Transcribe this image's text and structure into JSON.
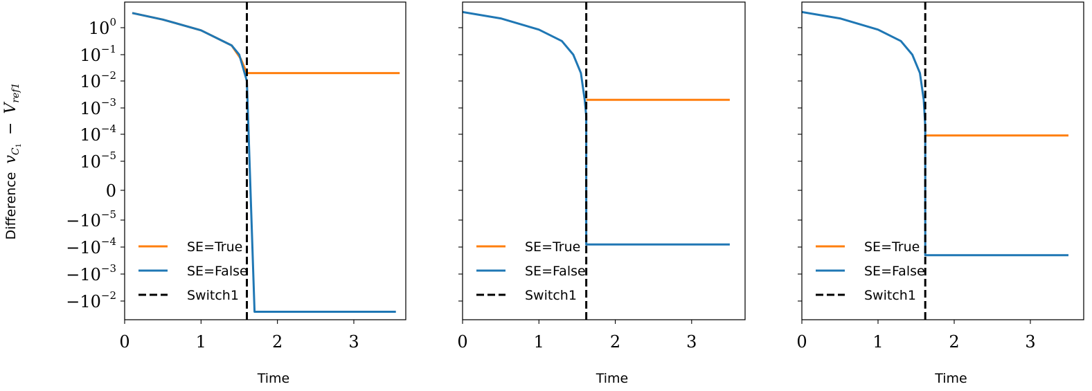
{
  "figure": {
    "ylabel_prefix": "Difference",
    "ylabel_math": "v",
    "ylabel_math_sub": "C",
    "ylabel_math_subsub": "1",
    "ylabel_minus": "−",
    "ylabel_math2": "V",
    "ylabel_math2_sub": "ref1"
  },
  "colors": {
    "se_true": "#ff7f0e",
    "se_false": "#1f77b4",
    "switch": "#000000"
  },
  "chart_data": [
    {
      "type": "line",
      "panel": 1,
      "xlabel": "Time",
      "ylabel": "Difference v_{C_1} − V_{ref1}",
      "xlim": [
        0,
        3.7
      ],
      "yscale": "symlog",
      "x_ticks": [
        "0",
        "1",
        "2",
        "3"
      ],
      "y_ticks": [
        {
          "base": "10",
          "exp": "0",
          "sign": ""
        },
        {
          "base": "10",
          "exp": "−1",
          "sign": ""
        },
        {
          "base": "10",
          "exp": "−2",
          "sign": ""
        },
        {
          "base": "10",
          "exp": "−3",
          "sign": ""
        },
        {
          "base": "10",
          "exp": "−4",
          "sign": ""
        },
        {
          "base": "10",
          "exp": "−5",
          "sign": ""
        },
        {
          "base": "0",
          "exp": "",
          "sign": ""
        },
        {
          "base": "10",
          "exp": "−5",
          "sign": "−"
        },
        {
          "base": "10",
          "exp": "−4",
          "sign": "−"
        },
        {
          "base": "10",
          "exp": "−3",
          "sign": "−"
        },
        {
          "base": "10",
          "exp": "−2",
          "sign": "−"
        }
      ],
      "switch_x": 1.6,
      "legend": [
        "SE=True",
        "SE=False",
        "Switch1"
      ],
      "legend_position": "lower left",
      "series": [
        {
          "name": "SE=True",
          "color": "#ff7f0e",
          "points": [
            [
              0.1,
              3.5
            ],
            [
              0.5,
              2.0
            ],
            [
              1.0,
              0.8
            ],
            [
              1.4,
              0.22
            ],
            [
              1.52,
              0.07
            ],
            [
              1.6,
              0.02
            ],
            [
              1.6,
              0.02
            ],
            [
              3.6,
              0.02
            ]
          ]
        },
        {
          "name": "SE=False",
          "color": "#1f77b4",
          "points": [
            [
              0.1,
              3.5
            ],
            [
              0.5,
              2.0
            ],
            [
              1.0,
              0.8
            ],
            [
              1.4,
              0.22
            ],
            [
              1.5,
              0.1
            ],
            [
              1.6,
              0.01
            ],
            [
              1.7,
              -0.025
            ],
            [
              3.55,
              -0.025
            ]
          ]
        }
      ]
    },
    {
      "type": "line",
      "panel": 2,
      "xlabel": "Time",
      "xlim": [
        0,
        3.6
      ],
      "yscale": "symlog",
      "x_ticks": [
        "0",
        "1",
        "2",
        "3"
      ],
      "switch_x": 1.62,
      "legend": [
        "SE=True",
        "SE=False",
        "Switch1"
      ],
      "legend_position": "lower left",
      "series": [
        {
          "name": "SE=True",
          "color": "#ff7f0e",
          "points": [
            [
              1.62,
              0.002
            ],
            [
              3.5,
              0.002
            ]
          ]
        },
        {
          "name": "SE=False",
          "color": "#1f77b4",
          "points": [
            [
              0.0,
              3.8
            ],
            [
              0.5,
              2.2
            ],
            [
              1.0,
              0.85
            ],
            [
              1.3,
              0.32
            ],
            [
              1.45,
              0.1
            ],
            [
              1.55,
              0.02
            ],
            [
              1.6,
              0.002
            ],
            [
              1.62,
              0.0005
            ],
            [
              1.62,
              -8e-05
            ],
            [
              3.5,
              -8e-05
            ]
          ]
        }
      ]
    },
    {
      "type": "line",
      "panel": 3,
      "xlabel": "Time",
      "xlim": [
        0,
        3.6
      ],
      "yscale": "symlog",
      "x_ticks": [
        "0",
        "1",
        "2",
        "3"
      ],
      "switch_x": 1.62,
      "legend": [
        "SE=True",
        "SE=False",
        "Switch1"
      ],
      "legend_position": "lower left",
      "series": [
        {
          "name": "SE=True",
          "color": "#ff7f0e",
          "points": [
            [
              1.62,
              9e-05
            ],
            [
              3.5,
              9e-05
            ]
          ]
        },
        {
          "name": "SE=False",
          "color": "#1f77b4",
          "points": [
            [
              0.0,
              3.8
            ],
            [
              0.5,
              2.2
            ],
            [
              1.0,
              0.85
            ],
            [
              1.3,
              0.32
            ],
            [
              1.45,
              0.1
            ],
            [
              1.55,
              0.02
            ],
            [
              1.6,
              0.002
            ],
            [
              1.62,
              0.0002
            ],
            [
              1.62,
              -0.0002
            ],
            [
              3.5,
              -0.0002
            ]
          ]
        }
      ]
    }
  ]
}
